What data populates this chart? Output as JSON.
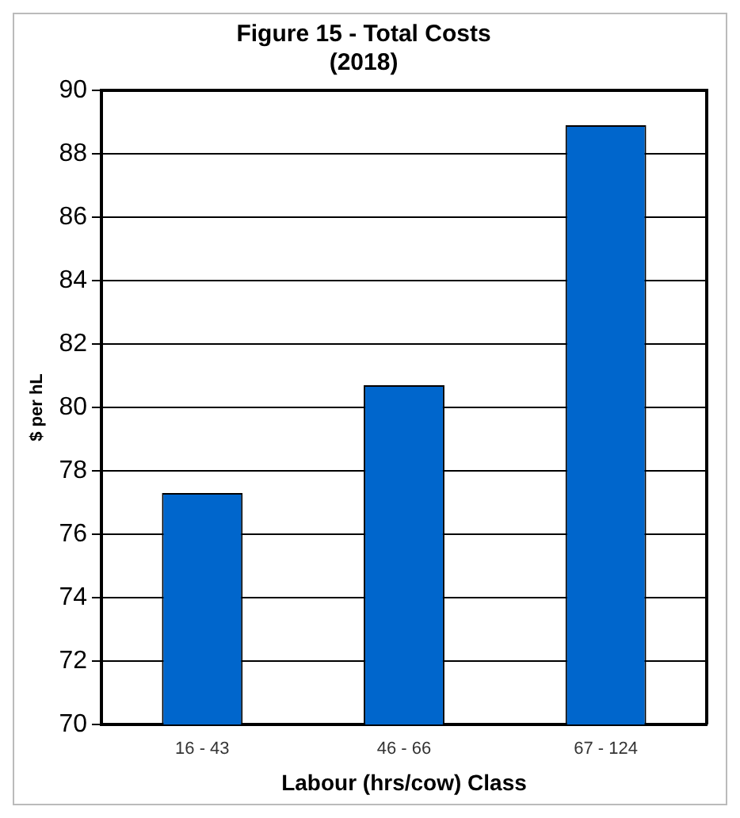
{
  "chart_data": {
    "type": "bar",
    "title": "Figure 15 - Total Costs\n(2018)",
    "xlabel": "Labour (hrs/cow) Class",
    "ylabel": "$ per hL",
    "categories": [
      "16 - 43",
      "46 - 66",
      "67 - 124"
    ],
    "values": [
      77.3,
      80.7,
      88.9
    ],
    "color": "#0066cc",
    "ylim": [
      70,
      90
    ],
    "yticks": [
      70,
      72,
      74,
      76,
      78,
      80,
      82,
      84,
      86,
      88,
      90
    ],
    "grid": "y",
    "legend": false
  }
}
